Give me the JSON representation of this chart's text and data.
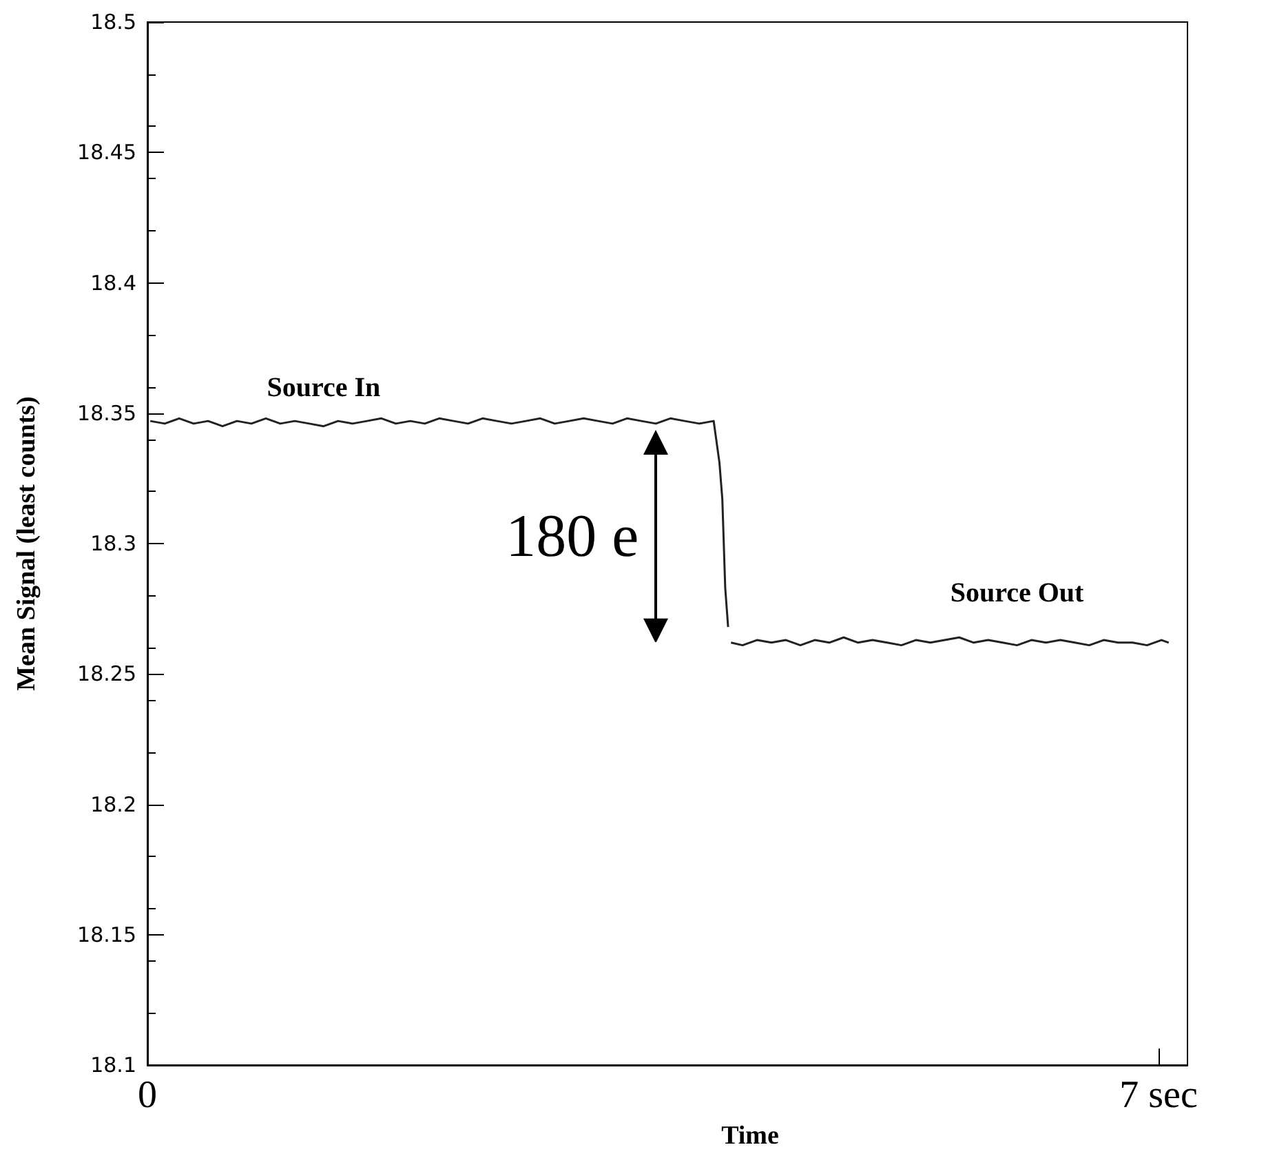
{
  "chart_data": {
    "type": "line",
    "xlabel": "Time",
    "ylabel": "Mean Signal (least counts)",
    "xlim": [
      0,
      7.2
    ],
    "xticks": [
      0,
      {
        "value": 7,
        "label": "7 sec"
      }
    ],
    "ylim": [
      18.1,
      18.5
    ],
    "yticks": [
      18.1,
      18.15,
      18.2,
      18.25,
      18.3,
      18.35,
      18.4,
      18.45,
      18.5
    ],
    "grid": false,
    "marker": "none",
    "line_style": "solid",
    "series": [
      {
        "color": "#222222",
        "x": [
          0.02,
          0.12,
          0.22,
          0.32,
          0.42,
          0.52,
          0.62,
          0.72,
          0.82,
          0.92,
          1.02,
          1.12,
          1.22,
          1.32,
          1.42,
          1.52,
          1.62,
          1.72,
          1.82,
          1.92,
          2.02,
          2.12,
          2.22,
          2.32,
          2.42,
          2.52,
          2.62,
          2.72,
          2.82,
          2.92,
          3.02,
          3.12,
          3.22,
          3.32,
          3.42,
          3.52,
          3.62,
          3.72,
          3.82,
          3.92,
          3.96,
          3.98,
          4.0,
          4.02
        ],
        "values": [
          18.347,
          18.346,
          18.348,
          18.346,
          18.347,
          18.345,
          18.347,
          18.346,
          18.348,
          18.346,
          18.347,
          18.346,
          18.345,
          18.347,
          18.346,
          18.347,
          18.348,
          18.346,
          18.347,
          18.346,
          18.348,
          18.347,
          18.346,
          18.348,
          18.347,
          18.346,
          18.347,
          18.348,
          18.346,
          18.347,
          18.348,
          18.347,
          18.346,
          18.348,
          18.347,
          18.346,
          18.348,
          18.347,
          18.346,
          18.347,
          18.331,
          18.317,
          18.283,
          18.268
        ]
      },
      {
        "color": "#222222",
        "x": [
          4.04,
          4.12,
          4.22,
          4.32,
          4.42,
          4.52,
          4.62,
          4.72,
          4.82,
          4.92,
          5.02,
          5.12,
          5.22,
          5.32,
          5.42,
          5.52,
          5.62,
          5.72,
          5.82,
          5.92,
          6.02,
          6.12,
          6.22,
          6.32,
          6.42,
          6.52,
          6.62,
          6.72,
          6.82,
          6.92,
          7.02,
          7.07
        ],
        "values": [
          18.262,
          18.261,
          18.263,
          18.262,
          18.263,
          18.261,
          18.263,
          18.262,
          18.264,
          18.262,
          18.263,
          18.262,
          18.261,
          18.263,
          18.262,
          18.263,
          18.264,
          18.262,
          18.263,
          18.262,
          18.261,
          18.263,
          18.262,
          18.263,
          18.262,
          18.261,
          18.263,
          18.262,
          18.262,
          18.261,
          18.263,
          18.262
        ]
      }
    ],
    "annotations": [
      "Source In",
      "Source Out",
      "180 e"
    ]
  }
}
